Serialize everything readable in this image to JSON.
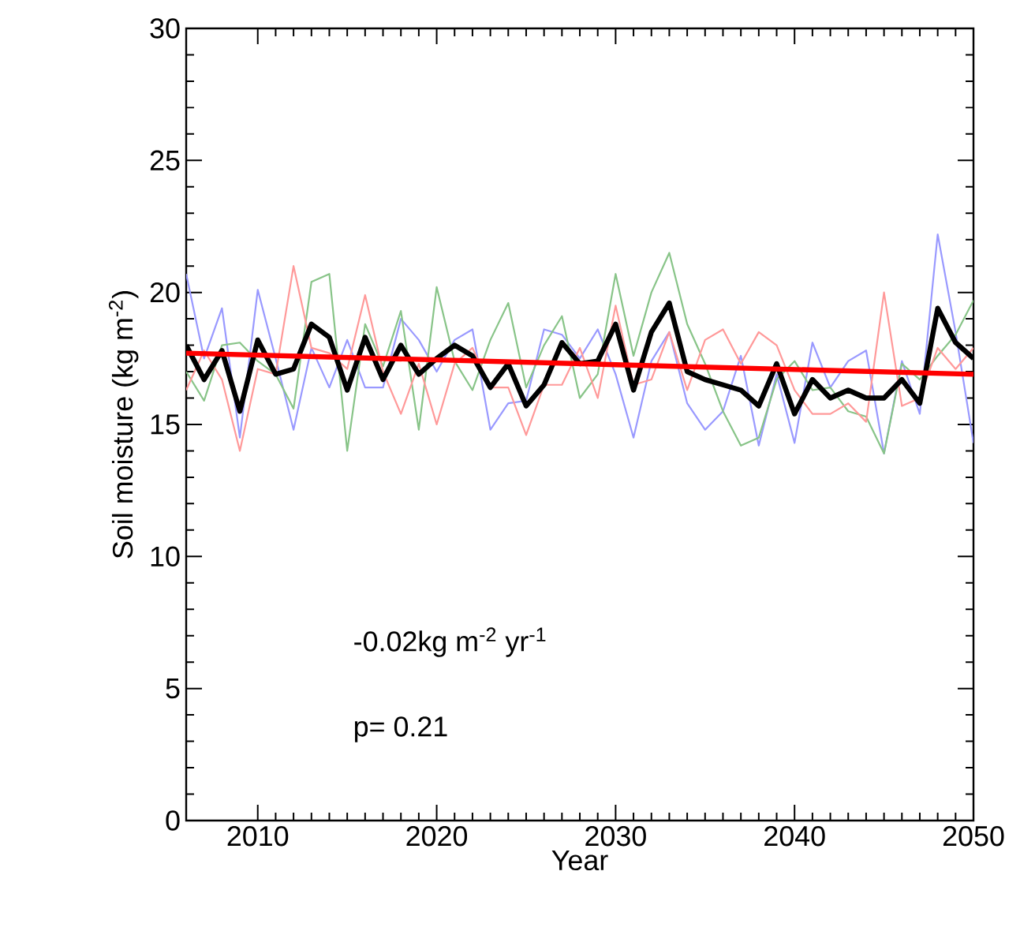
{
  "chart_data": {
    "type": "line",
    "xlabel": "Year",
    "ylabel": "Soil moisture (kg m$^{-2}$)",
    "x": [
      2006,
      2007,
      2008,
      2009,
      2010,
      2011,
      2012,
      2013,
      2014,
      2015,
      2016,
      2017,
      2018,
      2019,
      2020,
      2021,
      2022,
      2023,
      2024,
      2025,
      2026,
      2027,
      2028,
      2029,
      2030,
      2031,
      2032,
      2033,
      2034,
      2035,
      2036,
      2037,
      2038,
      2039,
      2040,
      2041,
      2042,
      2043,
      2044,
      2045,
      2046,
      2047,
      2048,
      2049,
      2050
    ],
    "series": [
      {
        "color": "#9999ff",
        "values": [
          20.7,
          17.5,
          19.4,
          14.5,
          20.1,
          17.5,
          14.8,
          17.9,
          16.4,
          18.2,
          16.4,
          16.4,
          19.0,
          18.2,
          17.0,
          18.2,
          18.6,
          14.8,
          15.8,
          15.9,
          18.6,
          18.4,
          17.5,
          18.6,
          16.9,
          14.5,
          17.4,
          18.5,
          15.8,
          14.8,
          15.5,
          17.6,
          14.2,
          16.9,
          14.3,
          18.1,
          16.4,
          17.4,
          17.8,
          13.9,
          17.4,
          15.4,
          22.2,
          18.5,
          14.3
        ]
      },
      {
        "color": "#88c488",
        "values": [
          17.0,
          15.9,
          18.0,
          18.1,
          17.4,
          16.9,
          15.6,
          20.4,
          20.7,
          14.0,
          18.8,
          17.2,
          19.3,
          14.8,
          20.2,
          17.4,
          16.3,
          18.2,
          19.6,
          16.4,
          18.0,
          19.1,
          16.0,
          16.9,
          20.7,
          17.6,
          20.0,
          21.5,
          18.8,
          17.3,
          15.5,
          14.2,
          14.5,
          16.7,
          17.4,
          16.3,
          16.4,
          15.5,
          15.3,
          13.9,
          17.3,
          16.7,
          17.6,
          18.4,
          19.7
        ]
      },
      {
        "color": "#ff9999",
        "values": [
          16.3,
          17.8,
          16.7,
          14.0,
          17.1,
          16.9,
          21.0,
          17.9,
          17.7,
          17.1,
          19.9,
          17.0,
          15.4,
          17.3,
          15.0,
          17.3,
          17.9,
          16.4,
          16.4,
          14.6,
          16.5,
          16.5,
          17.9,
          16.0,
          19.5,
          16.5,
          16.7,
          18.5,
          16.3,
          18.2,
          18.6,
          17.3,
          18.5,
          18.0,
          16.3,
          15.4,
          15.4,
          15.8,
          15.1,
          20.0,
          15.7,
          16.0,
          17.9,
          17.1,
          17.9
        ]
      },
      {
        "color": "#000000",
        "values": [
          18.0,
          16.7,
          17.8,
          15.5,
          18.2,
          16.9,
          17.1,
          18.8,
          18.3,
          16.3,
          18.3,
          16.7,
          18.0,
          16.9,
          17.5,
          18.0,
          17.6,
          16.4,
          17.3,
          15.7,
          16.5,
          18.1,
          17.3,
          17.4,
          18.8,
          16.3,
          18.5,
          19.6,
          17.0,
          16.7,
          16.5,
          16.3,
          15.7,
          17.3,
          15.4,
          16.7,
          16.0,
          16.3,
          16.0,
          16.0,
          16.7,
          15.8,
          19.4,
          18.1,
          17.5
        ]
      },
      {
        "color": "#ff0000",
        "x": [
          2006,
          2050
        ],
        "values": [
          17.7,
          16.9
        ]
      }
    ],
    "xlim": [
      2006,
      2050
    ],
    "ylim": [
      0,
      30
    ],
    "xticks": [
      2010,
      2020,
      2030,
      2040,
      2050
    ],
    "yticks": [
      0,
      5,
      10,
      15,
      20,
      25,
      30
    ],
    "annotations": [
      "-0.02kg m$^{-2}$ yr$^{-1}$",
      "p= 0.21"
    ]
  }
}
